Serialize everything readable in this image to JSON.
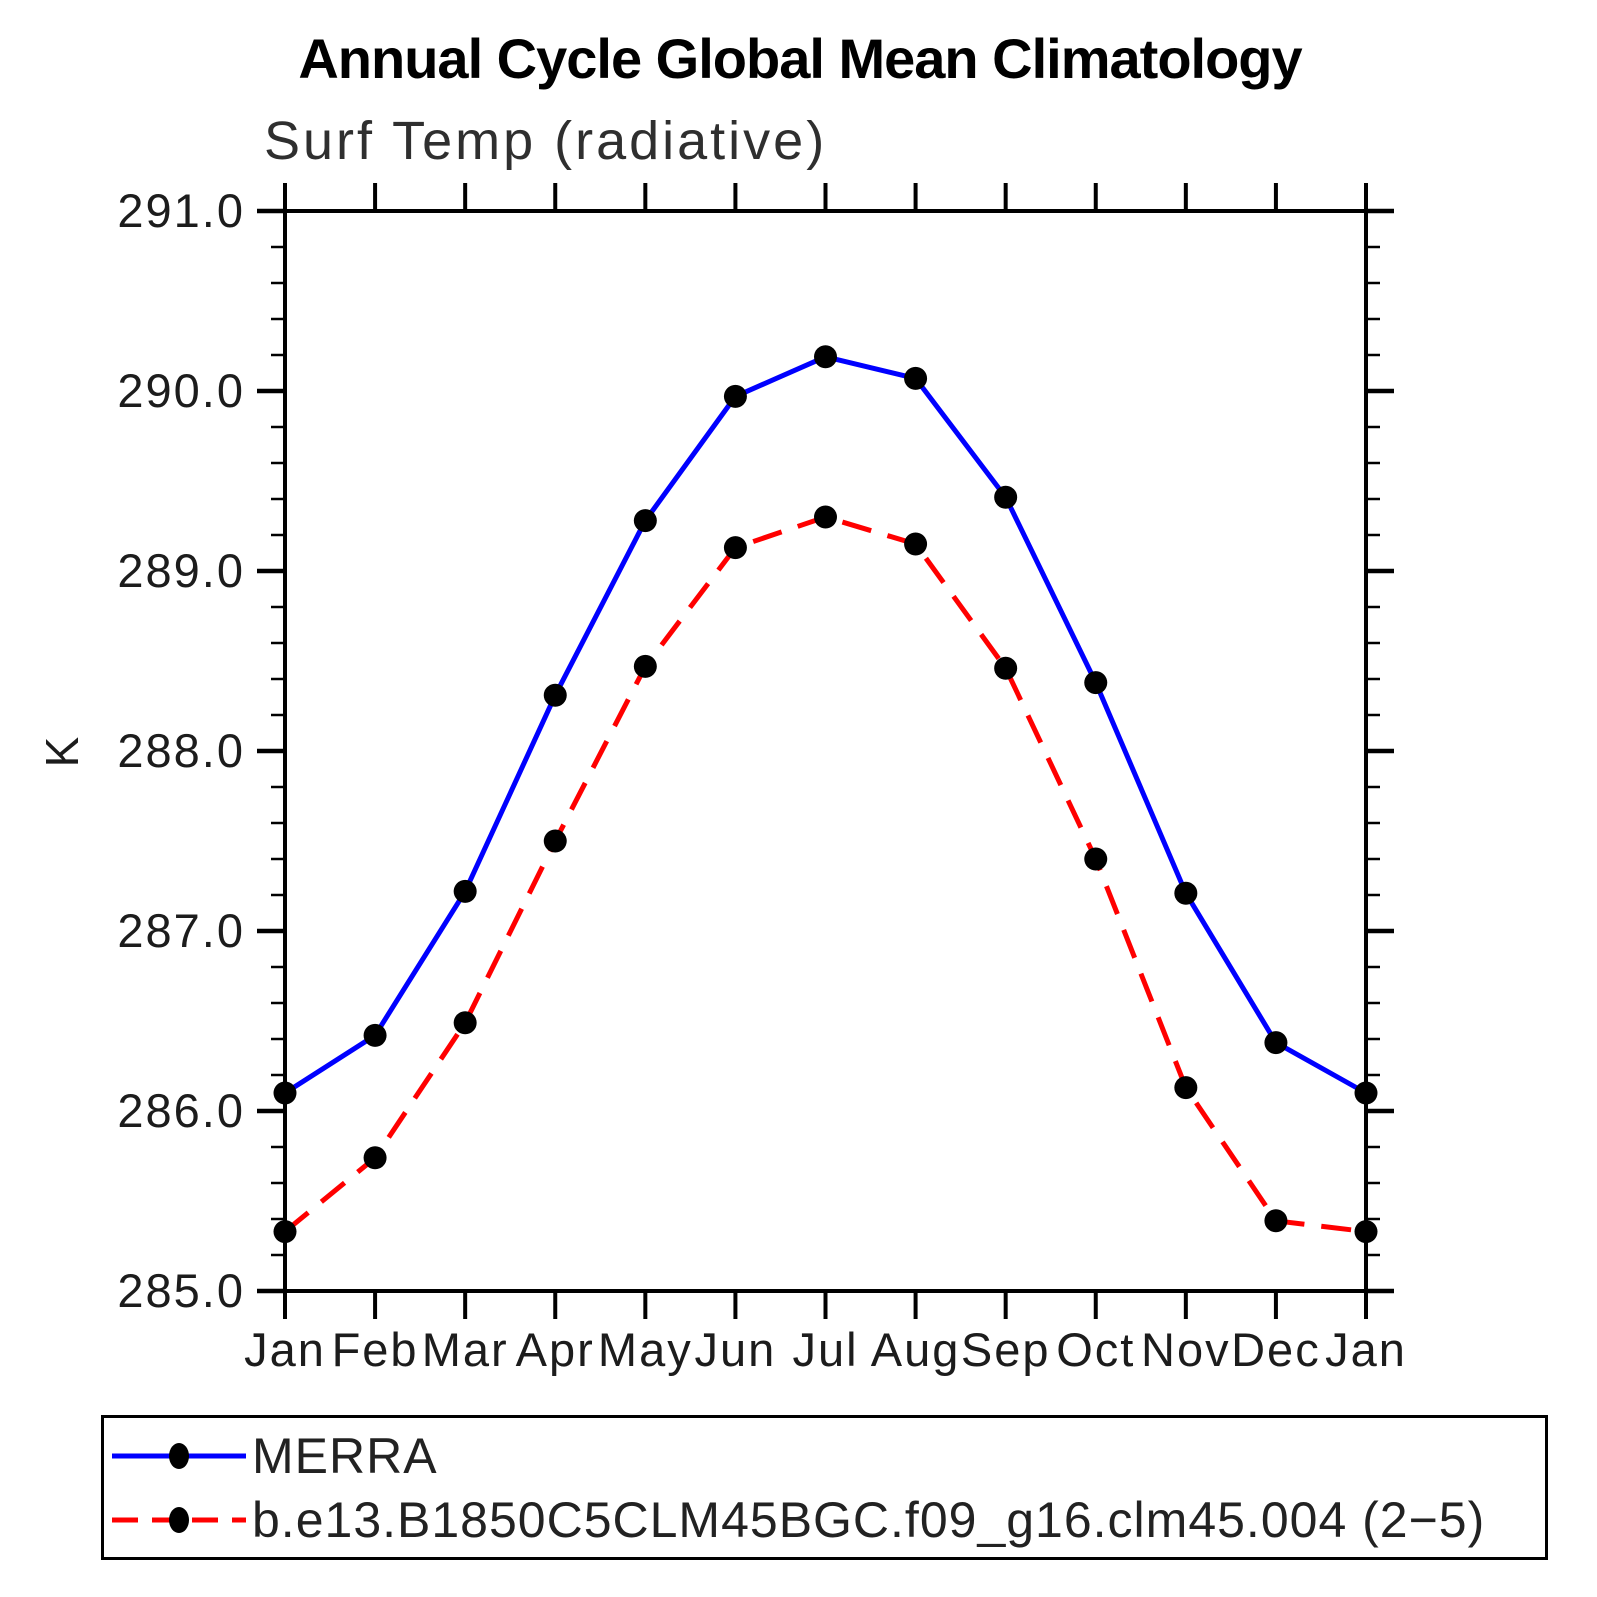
{
  "header": {
    "title": "Annual Cycle Global Mean Climatology"
  },
  "chart_data": {
    "type": "line",
    "title": "Annual Cycle Global Mean Climatology",
    "subtitle": "Surf Temp (radiative)",
    "xlabel": "",
    "ylabel": "K",
    "categories": [
      "Jan",
      "Feb",
      "Mar",
      "Apr",
      "May",
      "Jun",
      "Jul",
      "Aug",
      "Sep",
      "Oct",
      "Nov",
      "Dec",
      "Jan"
    ],
    "ylim": [
      285.0,
      291.0
    ],
    "yticks": [
      291.0,
      290.0,
      289.0,
      288.0,
      287.0,
      286.0,
      285.0
    ],
    "ytick_labels": [
      "291.0",
      "290.0",
      "289.0",
      "288.0",
      "287.0",
      "286.0",
      "285.0"
    ],
    "minor_tick_interval": 0.2,
    "grid": false,
    "legend_position": "bottom",
    "axis_color": "#000000",
    "tick_label_color": "#1c1c1c",
    "marker": "filled-circle",
    "marker_color": "#000000",
    "series": [
      {
        "name": "MERRA",
        "color": "#0000ff",
        "style": "solid",
        "values": [
          286.1,
          286.42,
          287.22,
          288.31,
          289.28,
          289.97,
          290.19,
          290.07,
          289.41,
          288.38,
          287.21,
          286.38,
          286.1
        ]
      },
      {
        "name": "b.e13.B1850C5CLM45BGC.f09_g16.clm45.004 (2−5)",
        "color": "#ff0000",
        "style": "dashed",
        "values": [
          285.33,
          285.74,
          286.49,
          287.5,
          288.47,
          289.13,
          289.3,
          289.15,
          288.46,
          287.4,
          286.13,
          285.39,
          285.33
        ]
      }
    ]
  }
}
